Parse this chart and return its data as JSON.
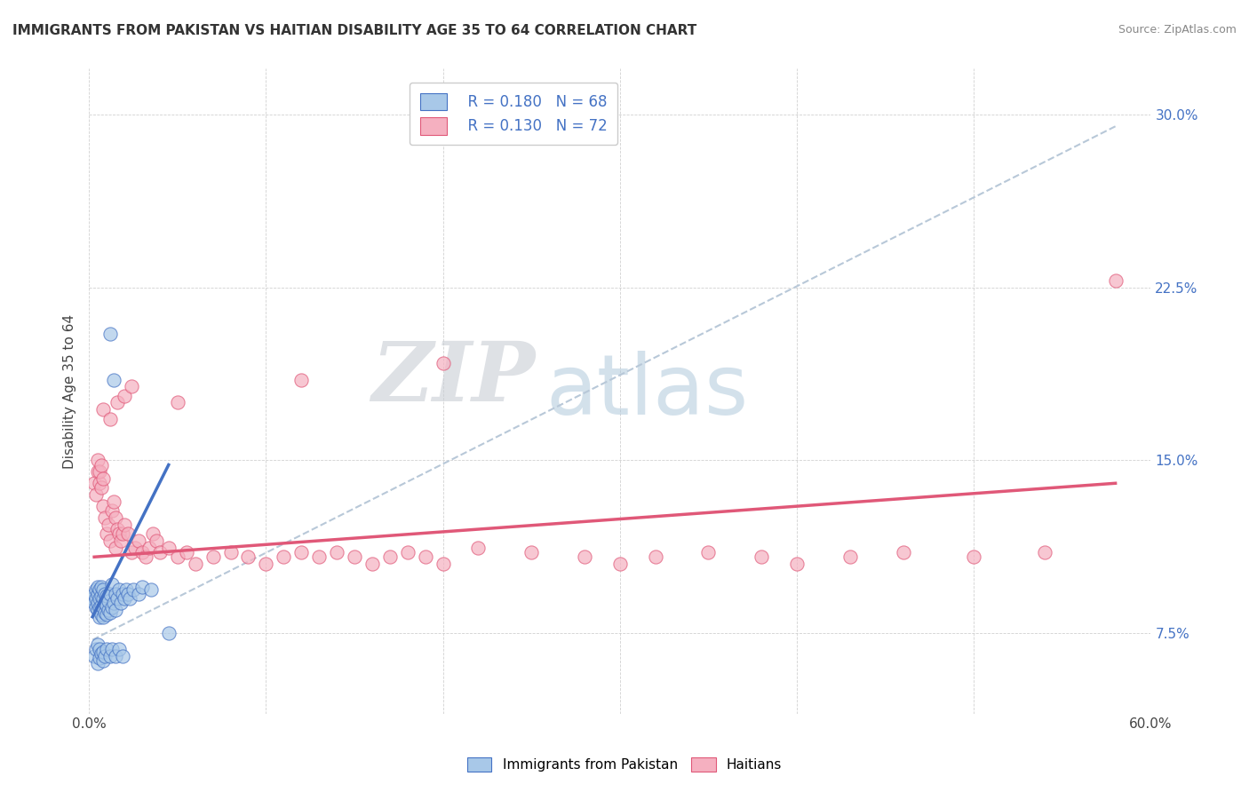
{
  "title": "IMMIGRANTS FROM PAKISTAN VS HAITIAN DISABILITY AGE 35 TO 64 CORRELATION CHART",
  "source": "Source: ZipAtlas.com",
  "ylabel": "Disability Age 35 to 64",
  "xlim": [
    0.0,
    0.6
  ],
  "ylim": [
    0.04,
    0.32
  ],
  "xticks": [
    0.0,
    0.1,
    0.2,
    0.3,
    0.4,
    0.5,
    0.6
  ],
  "xticklabels": [
    "0.0%",
    "",
    "",
    "",
    "",
    "",
    "60.0%"
  ],
  "yticks": [
    0.075,
    0.15,
    0.225,
    0.3
  ],
  "yticklabels": [
    "7.5%",
    "15.0%",
    "22.5%",
    "30.0%"
  ],
  "legend_r1": "R = 0.180",
  "legend_n1": "N = 68",
  "legend_r2": "R = 0.130",
  "legend_n2": "N = 72",
  "color_pakistan": "#a8c8e8",
  "color_haiti": "#f5b0c0",
  "line_color_pakistan": "#4472c4",
  "line_color_haiti": "#e05878",
  "trendline_color": "#b8c8d8",
  "watermark_zip": "ZIP",
  "watermark_atlas": "atlas",
  "pakistan_x": [
    0.002,
    0.003,
    0.003,
    0.004,
    0.004,
    0.004,
    0.005,
    0.005,
    0.005,
    0.005,
    0.006,
    0.006,
    0.006,
    0.006,
    0.007,
    0.007,
    0.007,
    0.007,
    0.008,
    0.008,
    0.008,
    0.008,
    0.009,
    0.009,
    0.009,
    0.01,
    0.01,
    0.01,
    0.011,
    0.011,
    0.012,
    0.012,
    0.013,
    0.013,
    0.014,
    0.015,
    0.015,
    0.016,
    0.017,
    0.018,
    0.019,
    0.02,
    0.021,
    0.022,
    0.023,
    0.025,
    0.028,
    0.03,
    0.035,
    0.003,
    0.004,
    0.005,
    0.005,
    0.006,
    0.006,
    0.007,
    0.008,
    0.008,
    0.009,
    0.01,
    0.012,
    0.013,
    0.015,
    0.017,
    0.019,
    0.012,
    0.014,
    0.045
  ],
  "pakistan_y": [
    0.09,
    0.088,
    0.092,
    0.086,
    0.09,
    0.094,
    0.085,
    0.088,
    0.092,
    0.095,
    0.082,
    0.086,
    0.09,
    0.094,
    0.083,
    0.087,
    0.091,
    0.095,
    0.082,
    0.086,
    0.09,
    0.094,
    0.084,
    0.088,
    0.092,
    0.083,
    0.087,
    0.091,
    0.085,
    0.089,
    0.084,
    0.092,
    0.086,
    0.096,
    0.088,
    0.085,
    0.092,
    0.09,
    0.094,
    0.088,
    0.092,
    0.09,
    0.094,
    0.092,
    0.09,
    0.094,
    0.092,
    0.095,
    0.094,
    0.065,
    0.068,
    0.062,
    0.07,
    0.064,
    0.068,
    0.066,
    0.063,
    0.067,
    0.065,
    0.068,
    0.065,
    0.068,
    0.065,
    0.068,
    0.065,
    0.205,
    0.185,
    0.075
  ],
  "haiti_x": [
    0.003,
    0.004,
    0.005,
    0.005,
    0.006,
    0.006,
    0.007,
    0.007,
    0.008,
    0.008,
    0.009,
    0.01,
    0.011,
    0.012,
    0.013,
    0.014,
    0.015,
    0.015,
    0.016,
    0.017,
    0.018,
    0.019,
    0.02,
    0.022,
    0.024,
    0.026,
    0.028,
    0.03,
    0.032,
    0.034,
    0.036,
    0.038,
    0.04,
    0.045,
    0.05,
    0.055,
    0.06,
    0.07,
    0.08,
    0.09,
    0.1,
    0.11,
    0.12,
    0.13,
    0.14,
    0.15,
    0.16,
    0.17,
    0.18,
    0.19,
    0.2,
    0.22,
    0.25,
    0.28,
    0.3,
    0.32,
    0.35,
    0.38,
    0.4,
    0.43,
    0.46,
    0.5,
    0.54,
    0.008,
    0.012,
    0.016,
    0.02,
    0.024,
    0.05,
    0.12,
    0.2,
    0.58
  ],
  "haiti_y": [
    0.14,
    0.135,
    0.145,
    0.15,
    0.14,
    0.145,
    0.138,
    0.148,
    0.142,
    0.13,
    0.125,
    0.118,
    0.122,
    0.115,
    0.128,
    0.132,
    0.112,
    0.125,
    0.12,
    0.118,
    0.115,
    0.118,
    0.122,
    0.118,
    0.11,
    0.112,
    0.115,
    0.11,
    0.108,
    0.112,
    0.118,
    0.115,
    0.11,
    0.112,
    0.108,
    0.11,
    0.105,
    0.108,
    0.11,
    0.108,
    0.105,
    0.108,
    0.11,
    0.108,
    0.11,
    0.108,
    0.105,
    0.108,
    0.11,
    0.108,
    0.105,
    0.112,
    0.11,
    0.108,
    0.105,
    0.108,
    0.11,
    0.108,
    0.105,
    0.108,
    0.11,
    0.108,
    0.11,
    0.172,
    0.168,
    0.175,
    0.178,
    0.182,
    0.175,
    0.185,
    0.192,
    0.228
  ],
  "pak_trend_x": [
    0.002,
    0.045
  ],
  "pak_trend_y": [
    0.082,
    0.148
  ],
  "hai_trend_x": [
    0.003,
    0.58
  ],
  "hai_trend_y": [
    0.108,
    0.14
  ],
  "grey_trend_x": [
    0.002,
    0.58
  ],
  "grey_trend_y": [
    0.072,
    0.295
  ]
}
